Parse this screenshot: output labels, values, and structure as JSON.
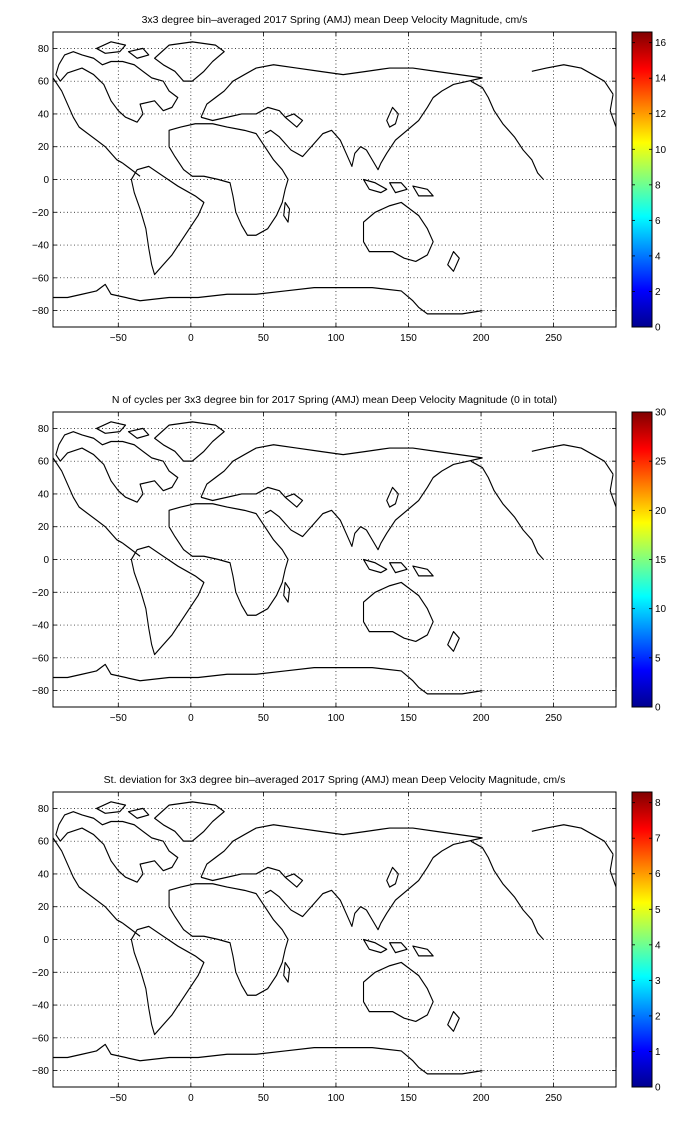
{
  "maps": [
    {
      "title": "3x3 degree bin–averaged 2017 Spring (AMJ) mean Deep Velocity Magnitude, cm/s",
      "x_ticks": [
        "−50",
        "0",
        "50",
        "100",
        "150",
        "200",
        "250"
      ],
      "y_ticks": [
        "80",
        "60",
        "40",
        "20",
        "0",
        "−20",
        "−40",
        "−60",
        "−80"
      ],
      "colorbar_ticks": [
        "16",
        "14",
        "12",
        "10",
        "8",
        "6",
        "4",
        "2",
        "0"
      ],
      "colorbar_max": 16.6
    },
    {
      "title": "N of cycles per 3x3 degree bin for 2017 Spring (AMJ) mean Deep Velocity Magnitude (0 in total)",
      "x_ticks": [
        "−50",
        "0",
        "50",
        "100",
        "150",
        "200",
        "250"
      ],
      "y_ticks": [
        "80",
        "60",
        "40",
        "20",
        "0",
        "−20",
        "−40",
        "−60",
        "−80"
      ],
      "colorbar_ticks": [
        "30",
        "25",
        "20",
        "15",
        "10",
        "5",
        "0"
      ],
      "colorbar_max": 30
    },
    {
      "title": "St. deviation for 3x3 degree bin–averaged 2017 Spring (AMJ) mean Deep Velocity Magnitude, cm/s",
      "x_ticks": [
        "−50",
        "0",
        "50",
        "100",
        "150",
        "200",
        "250"
      ],
      "y_ticks": [
        "80",
        "60",
        "40",
        "20",
        "0",
        "−20",
        "−40",
        "−60",
        "−80"
      ],
      "colorbar_ticks": [
        "8",
        "7",
        "6",
        "5",
        "4",
        "3",
        "2",
        "1",
        "0"
      ],
      "colorbar_max": 8.3
    }
  ],
  "chart_data": [
    {
      "type": "heatmap",
      "title": "3x3 degree bin–averaged 2017 Spring (AMJ) mean Deep Velocity Magnitude, cm/s",
      "xlim": [
        -95,
        293
      ],
      "ylim": [
        -90,
        90
      ],
      "x_ticks": [
        -50,
        0,
        50,
        100,
        150,
        200,
        250
      ],
      "y_ticks": [
        80,
        60,
        40,
        20,
        0,
        -20,
        -40,
        -60,
        -80
      ],
      "colorbar": {
        "min": 0,
        "max": 16.6,
        "ticks": [
          0,
          2,
          4,
          6,
          8,
          10,
          12,
          14,
          16
        ],
        "colormap": "jet"
      },
      "grid": true,
      "values": []
    },
    {
      "type": "heatmap",
      "title": "N of cycles per 3x3 degree bin for 2017 Spring (AMJ) mean Deep Velocity Magnitude (0 in total)",
      "xlim": [
        -95,
        293
      ],
      "ylim": [
        -90,
        90
      ],
      "x_ticks": [
        -50,
        0,
        50,
        100,
        150,
        200,
        250
      ],
      "y_ticks": [
        80,
        60,
        40,
        20,
        0,
        -20,
        -40,
        -60,
        -80
      ],
      "colorbar": {
        "min": 0,
        "max": 30,
        "ticks": [
          0,
          5,
          10,
          15,
          20,
          25,
          30
        ],
        "colormap": "jet"
      },
      "grid": true,
      "values": []
    },
    {
      "type": "heatmap",
      "title": "St. deviation for 3x3 degree bin–averaged 2017 Spring (AMJ) mean Deep Velocity Magnitude, cm/s",
      "xlim": [
        -95,
        293
      ],
      "ylim": [
        -90,
        90
      ],
      "x_ticks": [
        -50,
        0,
        50,
        100,
        150,
        200,
        250
      ],
      "y_ticks": [
        80,
        60,
        40,
        20,
        0,
        -20,
        -40,
        -60,
        -80
      ],
      "colorbar": {
        "min": 0,
        "max": 8.3,
        "ticks": [
          0,
          1,
          2,
          3,
          4,
          5,
          6,
          7,
          8
        ],
        "colormap": "jet"
      },
      "grid": true,
      "values": []
    }
  ]
}
